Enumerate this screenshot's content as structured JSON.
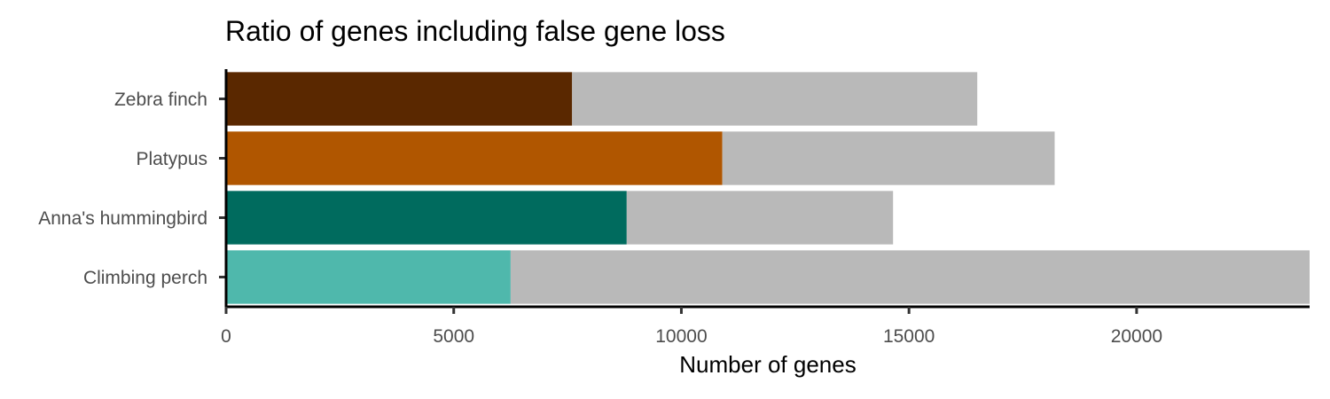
{
  "chart_data": {
    "type": "bar",
    "orientation": "horizontal",
    "stacked": true,
    "title": "Ratio of genes including false gene loss",
    "xlabel": "Number of genes",
    "ylabel": "",
    "xlim": [
      0,
      23800
    ],
    "xticks": [
      0,
      5000,
      10000,
      15000,
      20000
    ],
    "grid": false,
    "legend": "none",
    "categories": [
      "Zebra finch",
      "Platypus",
      "Anna's hummingbird",
      "Climbing perch"
    ],
    "series": [
      {
        "values": [
          7600,
          10900,
          8800,
          6250
        ],
        "colors": [
          "#5a2800",
          "#b05600",
          "#006b5e",
          "#4fb8ac"
        ]
      },
      {
        "values": [
          8900,
          7300,
          5850,
          17550
        ],
        "colors": [
          "#b9b9b9",
          "#b9b9b9",
          "#b9b9b9",
          "#b9b9b9"
        ]
      }
    ]
  }
}
